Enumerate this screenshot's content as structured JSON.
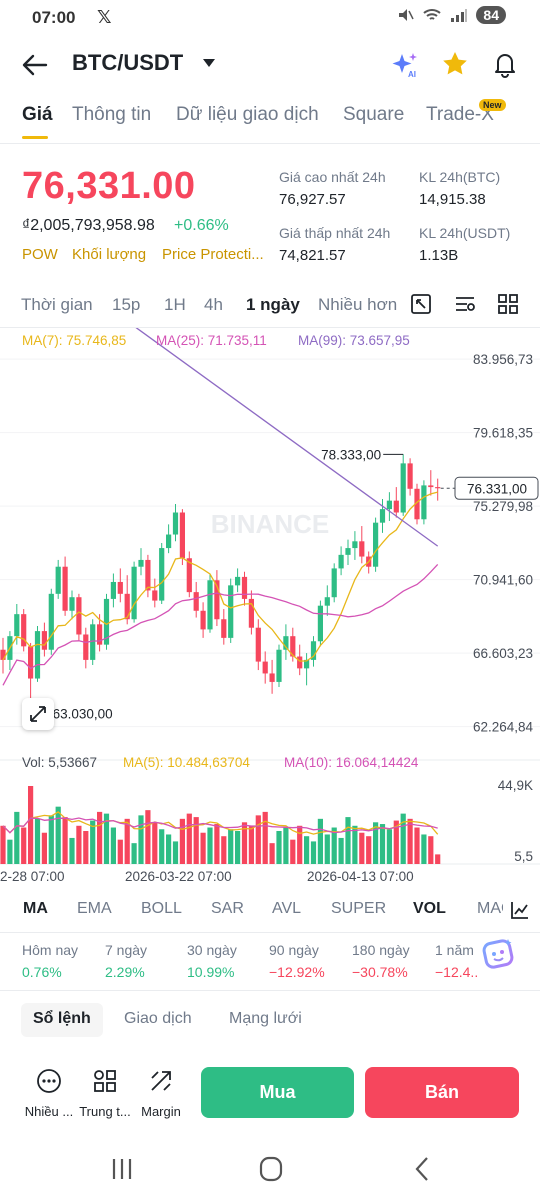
{
  "status": {
    "time": "07:00",
    "x_label": "𝕏",
    "battery": "84"
  },
  "header": {
    "pair": "BTC/USDT"
  },
  "tabs": [
    {
      "label": "Giá"
    },
    {
      "label": "Thông tin"
    },
    {
      "label": "Dữ liệu giao dịch"
    },
    {
      "label": "Square"
    },
    {
      "label": "Trade-X"
    }
  ],
  "new_badge": "New",
  "price": {
    "last": "76,331.00",
    "fiat": "₫2,005,793,958.98",
    "change": "+0.66%",
    "tags": [
      "POW",
      "Khối lượng",
      "Price Protecti..."
    ]
  },
  "stats": {
    "high_label": "Giá cao nhất 24h",
    "high_value": "76,927.57",
    "vol_btc_label": "KL 24h(BTC)",
    "vol_btc_value": "14,915.38",
    "low_label": "Giá thấp nhất 24h",
    "low_value": "74,821.57",
    "vol_usdt_label": "KL 24h(USDT)",
    "vol_usdt_value": "1.13B"
  },
  "intervals": [
    "Thời gian",
    "15p",
    "1H",
    "4h",
    "1 ngày",
    "Nhiều hơn"
  ],
  "ma_legend": {
    "ma7": "MA(7): 75.746,85",
    "ma25": "MA(25): 71.735,11",
    "ma99": "MA(99): 73.657,95"
  },
  "vol_legend": {
    "vol": "Vol: 5,53667",
    "ma5": "MA(5): 10.484,63704",
    "ma10": "MA(10): 16.064,14424"
  },
  "chart_data": {
    "type": "candlestick",
    "watermark": "BINANCE",
    "y_ticks": [
      "83.956,73",
      "79.618,35",
      "75.279,98",
      "70.941,60",
      "66.603,23",
      "62.264,84"
    ],
    "y_tick_values": [
      83956.73,
      79618.35,
      75279.98,
      70941.6,
      66603.23,
      62264.84
    ],
    "vol_ticks": [
      "44,9K",
      "5,5"
    ],
    "x_ticks": [
      "2-28 07:00",
      "2026-03-22 07:00",
      "2026-04-13 07:00"
    ],
    "high_marker": "78.333,00",
    "high_marker_value": 78333.0,
    "low_marker": "63.030,00",
    "low_marker_value": 63030.0,
    "last_price_label": "76.331,00",
    "last_price_value": 76331.0,
    "ylim": [
      61000,
      85200
    ],
    "candles": [
      [
        66800,
        67500,
        65400,
        66200
      ],
      [
        66200,
        67900,
        65600,
        67600
      ],
      [
        67600,
        69500,
        67100,
        68900
      ],
      [
        68900,
        69200,
        66700,
        67000
      ],
      [
        67000,
        67200,
        63030,
        65100
      ],
      [
        65100,
        68200,
        64900,
        67900
      ],
      [
        67900,
        68400,
        66400,
        66800
      ],
      [
        66800,
        70400,
        66500,
        70100
      ],
      [
        70100,
        72100,
        69800,
        71700
      ],
      [
        71700,
        72300,
        68800,
        69100
      ],
      [
        69100,
        70300,
        68600,
        69900
      ],
      [
        69900,
        70100,
        67300,
        67700
      ],
      [
        67700,
        68100,
        65700,
        66200
      ],
      [
        66200,
        68600,
        65900,
        68300
      ],
      [
        68300,
        68900,
        66700,
        67100
      ],
      [
        67100,
        70100,
        66800,
        69800
      ],
      [
        69800,
        71300,
        69300,
        70800
      ],
      [
        70800,
        71600,
        69600,
        70100
      ],
      [
        70100,
        71200,
        68300,
        68600
      ],
      [
        68600,
        72000,
        68400,
        71700
      ],
      [
        71700,
        72800,
        71200,
        72100
      ],
      [
        72100,
        72400,
        69900,
        70300
      ],
      [
        70300,
        71000,
        69300,
        69700
      ],
      [
        69700,
        73100,
        69500,
        72800
      ],
      [
        72800,
        74200,
        72500,
        73600
      ],
      [
        73600,
        75400,
        73200,
        74900
      ],
      [
        74900,
        75100,
        71800,
        72200
      ],
      [
        72200,
        72600,
        69900,
        70200
      ],
      [
        70200,
        70800,
        68700,
        69100
      ],
      [
        69100,
        69600,
        67500,
        68000
      ],
      [
        68000,
        71300,
        67800,
        70900
      ],
      [
        70900,
        71500,
        68200,
        68600
      ],
      [
        68600,
        69200,
        67100,
        67500
      ],
      [
        67500,
        71000,
        67200,
        70600
      ],
      [
        70600,
        71600,
        70200,
        71100
      ],
      [
        71100,
        71400,
        69400,
        69800
      ],
      [
        69800,
        70300,
        67700,
        68100
      ],
      [
        68100,
        68600,
        65600,
        66100
      ],
      [
        66100,
        66700,
        64800,
        65400
      ],
      [
        65400,
        66200,
        64200,
        64900
      ],
      [
        64900,
        67100,
        64600,
        66800
      ],
      [
        66800,
        68300,
        66200,
        67600
      ],
      [
        67600,
        68100,
        66100,
        66400
      ],
      [
        66400,
        67100,
        65300,
        65700
      ],
      [
        65700,
        66600,
        64700,
        66200
      ],
      [
        66200,
        67600,
        65800,
        67300
      ],
      [
        67300,
        69700,
        67000,
        69400
      ],
      [
        69400,
        70600,
        68800,
        69900
      ],
      [
        69900,
        71900,
        69600,
        71600
      ],
      [
        71600,
        72900,
        71200,
        72400
      ],
      [
        72400,
        73300,
        71800,
        72800
      ],
      [
        72800,
        73800,
        72100,
        73200
      ],
      [
        73200,
        74100,
        71900,
        72300
      ],
      [
        72300,
        72600,
        71300,
        71700
      ],
      [
        71700,
        74600,
        71400,
        74300
      ],
      [
        74300,
        75700,
        73700,
        75100
      ],
      [
        75100,
        76100,
        74400,
        75600
      ],
      [
        75600,
        76400,
        74600,
        74900
      ],
      [
        74900,
        78333,
        74700,
        77800
      ],
      [
        77800,
        78100,
        75900,
        76300
      ],
      [
        76300,
        76600,
        74200,
        74500
      ],
      [
        74500,
        76800,
        74200,
        76500
      ],
      [
        76500,
        77400,
        75900,
        76400
      ],
      [
        76400,
        76900,
        75600,
        76331
      ]
    ],
    "volumes": [
      22000,
      14000,
      30000,
      21000,
      44900,
      26000,
      18000,
      28000,
      33000,
      27000,
      15000,
      22000,
      19000,
      25000,
      30000,
      29000,
      21000,
      14000,
      26000,
      12000,
      28000,
      31000,
      24000,
      20000,
      17000,
      13000,
      26000,
      29000,
      27000,
      18000,
      21000,
      23000,
      16000,
      20000,
      19000,
      24000,
      22000,
      28000,
      30000,
      12000,
      19000,
      21000,
      14000,
      22000,
      16000,
      13000,
      26000,
      17000,
      21000,
      15000,
      27000,
      22000,
      18000,
      16000,
      24000,
      23000,
      20000,
      25000,
      29000,
      26000,
      21000,
      17000,
      16000,
      5536
    ]
  },
  "indicator_tabs": [
    "MA",
    "EMA",
    "BOLL",
    "SAR",
    "AVL",
    "SUPER",
    "VOL",
    "MACD"
  ],
  "performance": [
    {
      "label": "Hôm nay",
      "value": "0.76%"
    },
    {
      "label": "7 ngày",
      "value": "2.29%"
    },
    {
      "label": "30 ngày",
      "value": "10.99%"
    },
    {
      "label": "90 ngày",
      "value": "−12.92%"
    },
    {
      "label": "180 ngày",
      "value": "−30.78%"
    },
    {
      "label": "1 năm",
      "value": "−12.4..."
    }
  ],
  "sub_tabs": [
    "Sổ lệnh",
    "Giao dịch",
    "Mạng lưới"
  ],
  "actions": [
    {
      "label": "Nhiều ...",
      "icon": "more-icon"
    },
    {
      "label": "Trung t...",
      "icon": "grid-icon"
    },
    {
      "label": "Margin",
      "icon": "margin-icon"
    }
  ],
  "buy_label": "Mua",
  "sell_label": "Bán",
  "colors": {
    "up": "#2ebd85",
    "down": "#f6465d",
    "brand": "#f0b90b",
    "ma7": "#e8b71a",
    "ma25": "#d453b5",
    "ma99": "#8e6bc4"
  }
}
